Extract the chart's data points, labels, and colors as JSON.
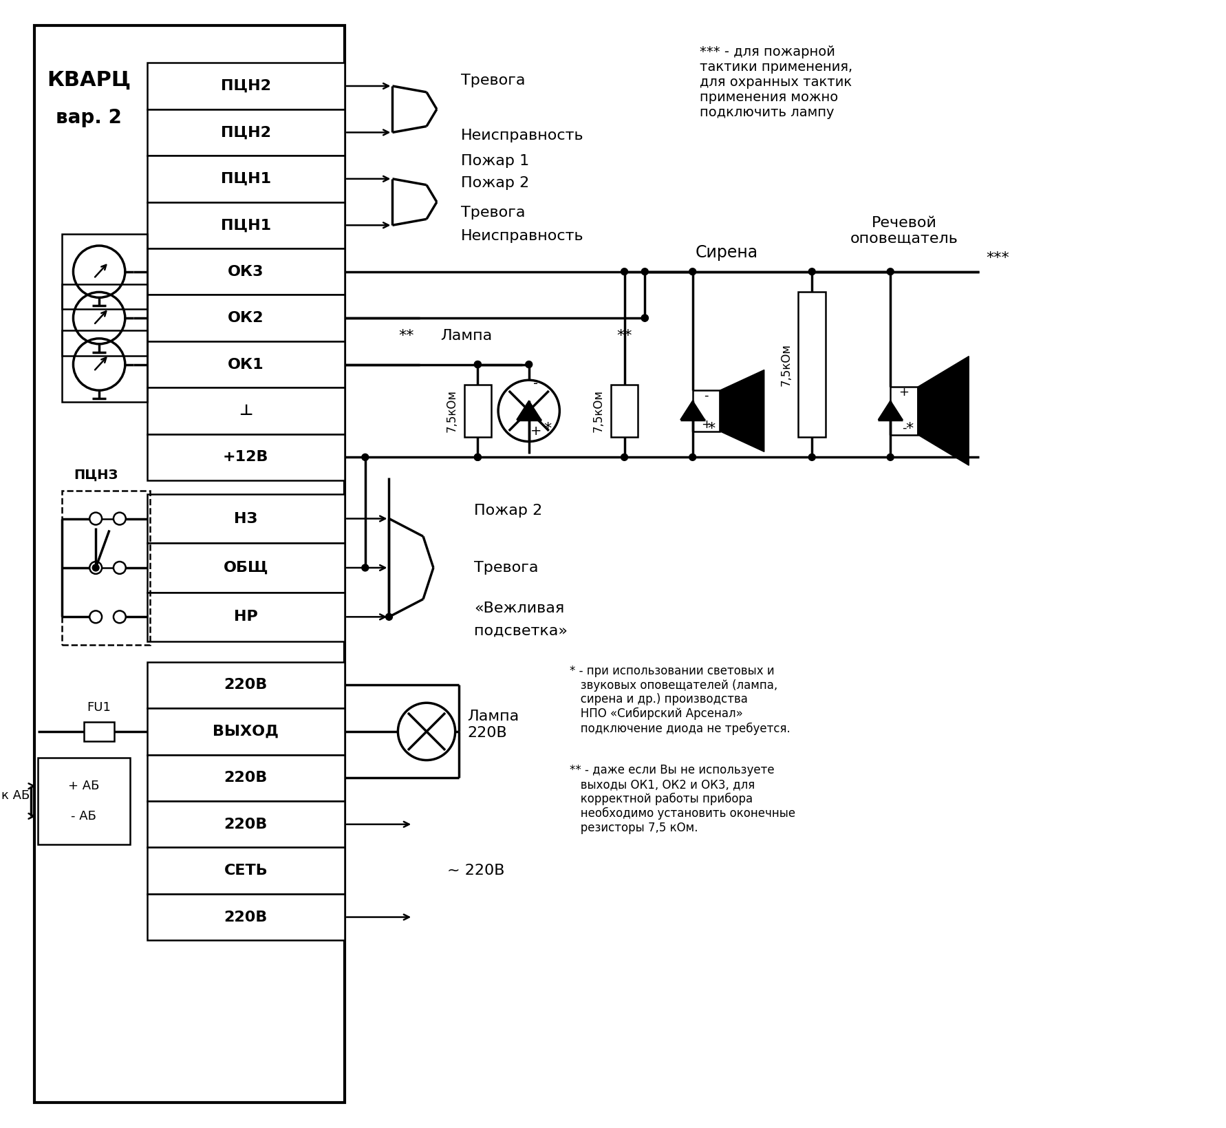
{
  "bg_color": "#ffffff",
  "line_color": "#000000",
  "fig_width": 17.82,
  "fig_height": 16.39,
  "terminal_labels1": [
    "ПЦН2",
    "ПЦН2",
    "ПЦН1",
    "ПЦН1",
    "ОК3",
    "ОК2",
    "ОК1",
    "⊥",
    "+12В"
  ],
  "terminal_labels2": [
    "НЗ",
    "ОБЩ",
    "НР"
  ],
  "terminal_labels3": [
    "220В",
    "ВЫХОД",
    "220В",
    "220В",
    "СЕТЬ",
    "220В"
  ],
  "star3_note": "*** - для пожарной\nтактики применения,\nдля охранных тактик\nприменения можно\nподключить лампу",
  "star1_note": "* - при использовании световых и\n   звуковых оповещателей (лампа,\n   сирена и др.) производства\n   НПО «Сибирский Арсенал»\n   подключение диода не требуется.",
  "star2_note": "** - даже если Вы не используете\n   выходы ОК1, ОК2 и ОК3, для\n   корректной работы прибора\n   необходимо установить оконечные\n   резисторы 7,5 кОм."
}
